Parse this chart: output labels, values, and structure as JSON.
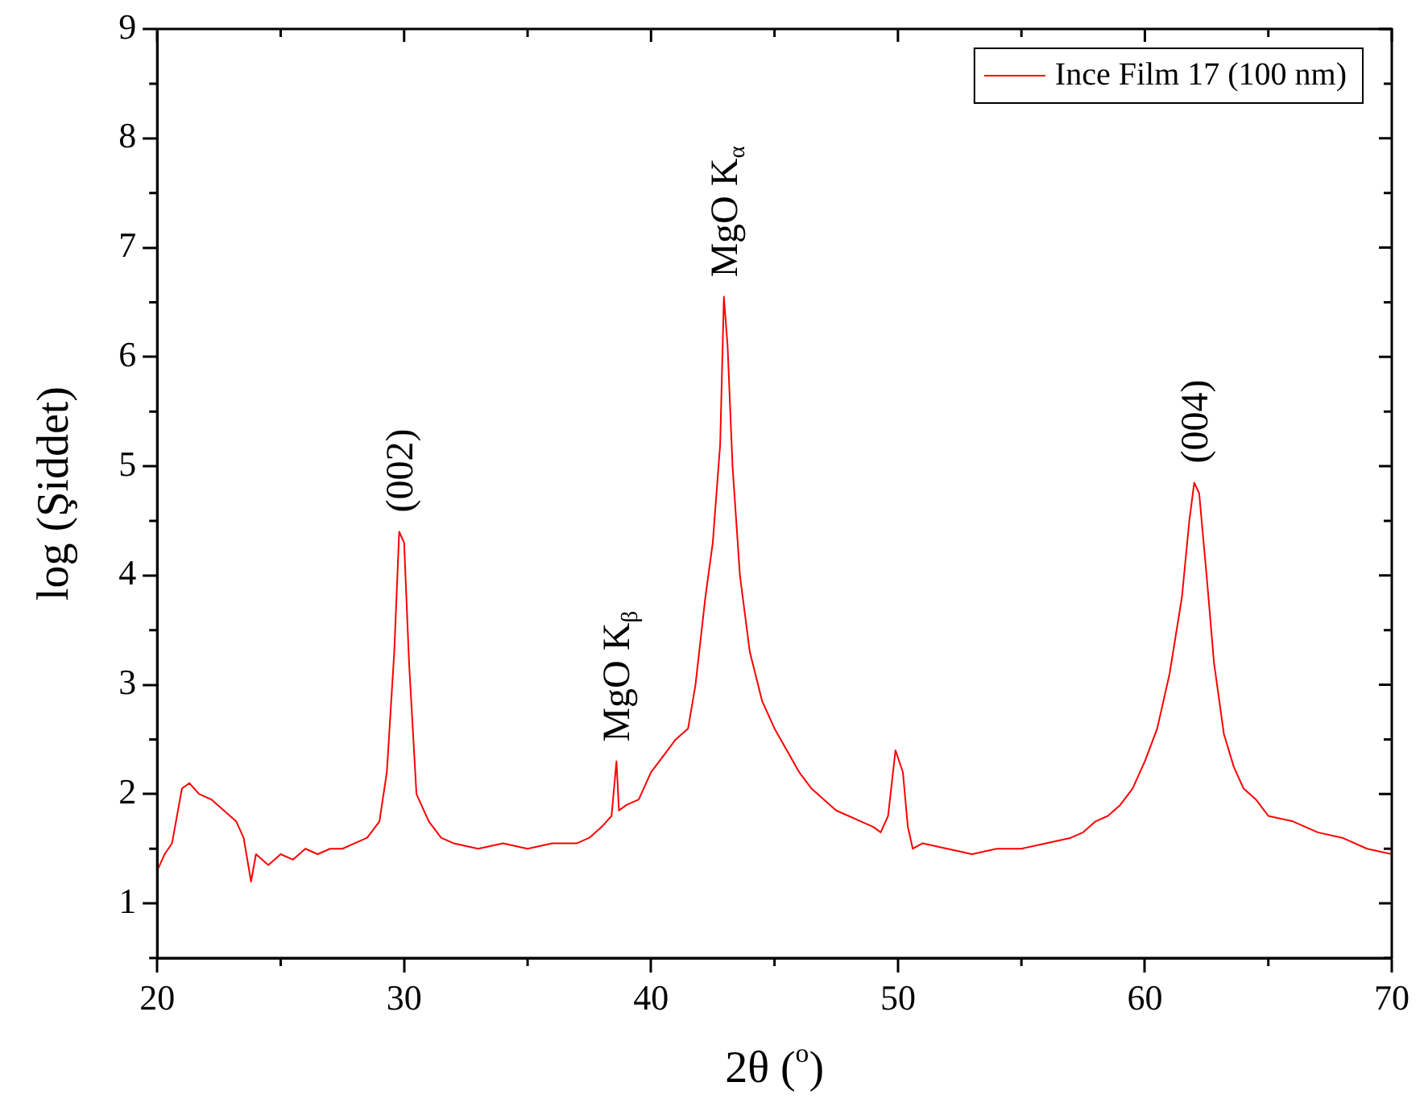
{
  "chart_data": {
    "type": "line",
    "xlabel": "2θ ($^{o}$)",
    "ylabel": "log (Şiddet)",
    "xlim": [
      20,
      70
    ],
    "xticks": [
      20,
      30,
      40,
      50,
      60,
      70
    ],
    "ylim": [
      0.5,
      9
    ],
    "yticks": [
      1,
      2,
      3,
      4,
      5,
      6,
      7,
      8,
      9
    ],
    "grid": false,
    "legend": "top right",
    "marker": "none",
    "line_style": "solid",
    "series": [
      {
        "name": "Ince Film 17 (100 nm)",
        "color": "#ff0000",
        "x": [
          20.0,
          20.3,
          20.6,
          21.0,
          21.3,
          21.7,
          22.2,
          22.7,
          23.2,
          23.5,
          23.8,
          24.0,
          24.5,
          25.0,
          25.5,
          26.0,
          26.5,
          27.0,
          27.5,
          28.0,
          28.5,
          29.0,
          29.3,
          29.6,
          29.8,
          30.0,
          30.2,
          30.5,
          31.0,
          31.5,
          32.0,
          33.0,
          34.0,
          35.0,
          36.0,
          37.0,
          37.5,
          38.0,
          38.4,
          38.6,
          38.7,
          39.0,
          39.5,
          40.0,
          40.5,
          41.0,
          41.5,
          41.8,
          42.2,
          42.5,
          42.8,
          42.95,
          43.1,
          43.3,
          43.6,
          44.0,
          44.5,
          45.0,
          45.5,
          46.0,
          46.5,
          47.0,
          47.5,
          48.0,
          48.5,
          49.0,
          49.3,
          49.6,
          49.9,
          50.2,
          50.4,
          50.6,
          51.0,
          52.0,
          53.0,
          54.0,
          55.0,
          56.0,
          57.0,
          57.5,
          58.0,
          58.5,
          59.0,
          59.5,
          60.0,
          60.5,
          61.0,
          61.5,
          61.8,
          62.0,
          62.2,
          62.5,
          62.8,
          63.2,
          63.6,
          64.0,
          64.5,
          65.0,
          66.0,
          67.0,
          68.0,
          69.0,
          70.0
        ],
        "values": [
          1.3,
          1.45,
          1.55,
          2.05,
          2.1,
          2.0,
          1.95,
          1.85,
          1.75,
          1.6,
          1.2,
          1.45,
          1.35,
          1.45,
          1.4,
          1.5,
          1.45,
          1.5,
          1.5,
          1.55,
          1.6,
          1.75,
          2.2,
          3.3,
          4.4,
          4.3,
          3.2,
          2.0,
          1.75,
          1.6,
          1.55,
          1.5,
          1.55,
          1.5,
          1.55,
          1.55,
          1.6,
          1.7,
          1.8,
          2.3,
          1.85,
          1.9,
          1.95,
          2.2,
          2.35,
          2.5,
          2.6,
          3.0,
          3.8,
          4.3,
          5.2,
          6.55,
          6.1,
          5.0,
          4.0,
          3.3,
          2.85,
          2.6,
          2.4,
          2.2,
          2.05,
          1.95,
          1.85,
          1.8,
          1.75,
          1.7,
          1.65,
          1.8,
          2.4,
          2.2,
          1.7,
          1.5,
          1.55,
          1.5,
          1.45,
          1.5,
          1.5,
          1.55,
          1.6,
          1.65,
          1.75,
          1.8,
          1.9,
          2.05,
          2.3,
          2.6,
          3.1,
          3.8,
          4.5,
          4.85,
          4.75,
          4.0,
          3.2,
          2.55,
          2.25,
          2.05,
          1.95,
          1.8,
          1.75,
          1.65,
          1.6,
          1.5,
          1.45
        ]
      }
    ],
    "annotations": [
      {
        "text": "(002)",
        "x": 29.8,
        "y": 4.4
      },
      {
        "text": "MgO K$_{β}$",
        "x": 38.6,
        "y": 2.3
      },
      {
        "text": "MgO K$_{α}$",
        "x": 42.95,
        "y": 6.55
      },
      {
        "text": "(004)",
        "x": 62,
        "y": 4.85
      }
    ]
  }
}
